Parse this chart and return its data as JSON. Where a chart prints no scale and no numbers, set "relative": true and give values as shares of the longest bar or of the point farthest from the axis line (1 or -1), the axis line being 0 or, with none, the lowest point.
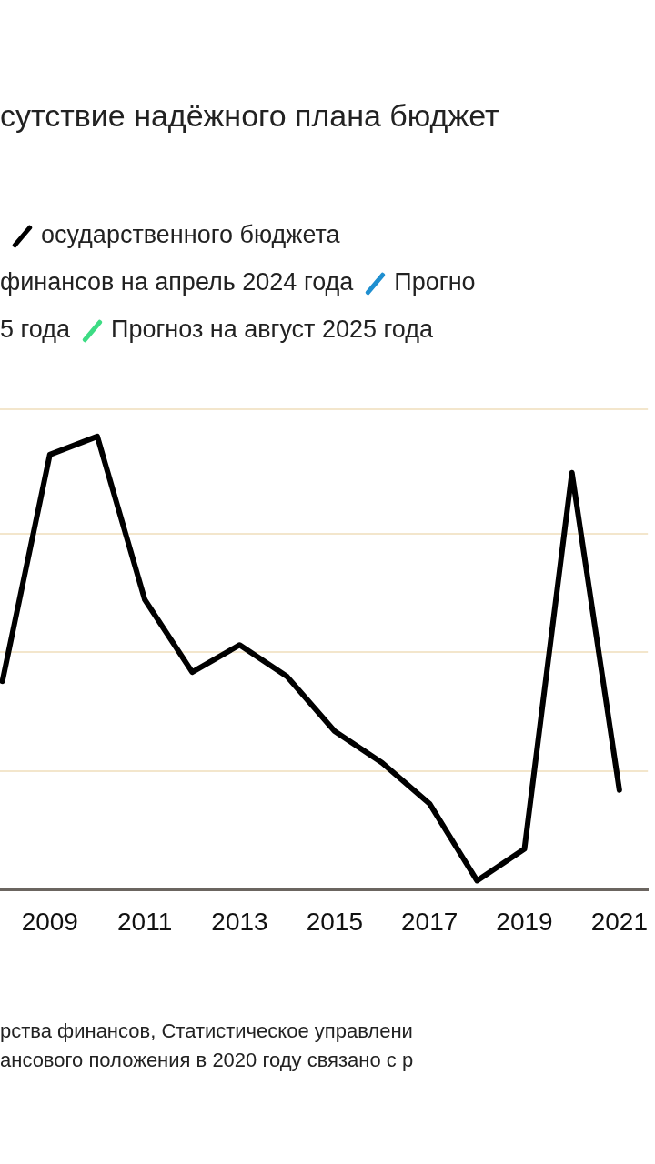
{
  "chart_data": {
    "type": "line",
    "title": "сутствие надёжного плана бюджет",
    "relative": true,
    "x": [
      2008,
      2009,
      2010,
      2011,
      2012,
      2013,
      2014,
      2015,
      2016,
      2017,
      2018,
      2019,
      2020,
      2021
    ],
    "xlim": [
      2007.95,
      2021.6
    ],
    "xticks": [
      2009,
      2011,
      2013,
      2015,
      2017,
      2019,
      2021
    ],
    "series": [
      {
        "name": "осударственного бюджета",
        "color": "#000000",
        "values": [
          0.46,
          0.96,
          1,
          0.64,
          0.48,
          0.54,
          0.47,
          0.35,
          0.28,
          0.19,
          0.02,
          0.09,
          0.92,
          0.22
        ]
      },
      {
        "name": "Прогно",
        "color": "#1f8fd0",
        "values": [
          null,
          null,
          null,
          null,
          null,
          null,
          null,
          null,
          null,
          null,
          null,
          null,
          null,
          null
        ]
      },
      {
        "name": "Прогноз на август 2025 года",
        "color": "#3ddc84",
        "values": [
          null,
          null,
          null,
          null,
          null,
          null,
          null,
          null,
          null,
          null,
          null,
          null,
          null,
          null
        ]
      }
    ],
    "annotations": [
      "финансов на апрель 2024 года",
      "5 года",
      "рства финансов, Статистическое управлени",
      "ансового положения в 2020 году связано с р"
    ],
    "grid": "y",
    "legend": "top left",
    "marker": "none",
    "line_style": "solid"
  }
}
